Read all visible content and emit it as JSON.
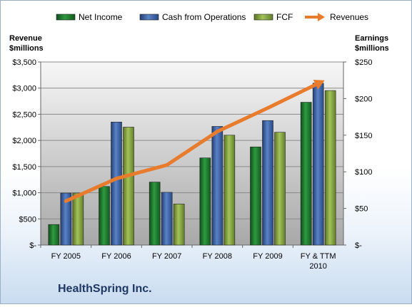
{
  "chart_data": {
    "type": "bar",
    "categories": [
      "FY 2005",
      "FY 2006",
      "FY 2007",
      "FY 2008",
      "FY 2009",
      "FY & TTM 2010"
    ],
    "left_axis": {
      "label_line1": "Revenue",
      "label_line2": "$millions",
      "ylim": [
        0,
        3500
      ],
      "ticks": [
        0,
        500,
        1000,
        1500,
        2000,
        2500,
        3000,
        3500
      ],
      "tick_labels": [
        "$-",
        "$500",
        "$1,000",
        "$1,500",
        "$2,000",
        "$2,500",
        "$3,000",
        "$3,500"
      ]
    },
    "right_axis": {
      "label_line1": "Earnings",
      "label_line2": "$millions",
      "ylim": [
        0,
        250
      ],
      "ticks": [
        0,
        50,
        100,
        150,
        200,
        250
      ],
      "tick_labels": [
        "$-",
        "$50",
        "$100",
        "$150",
        "$200",
        "$250"
      ]
    },
    "series": [
      {
        "name": "Net Income",
        "type": "bar",
        "axis": "right",
        "color": "#1e7a2e",
        "values": [
          28,
          80,
          86,
          119,
          134,
          195
        ]
      },
      {
        "name": "Cash from Operations",
        "type": "bar",
        "axis": "right",
        "color": "#3a62a8",
        "values": [
          71,
          168,
          72,
          162,
          170,
          221
        ]
      },
      {
        "name": "FCF",
        "type": "bar",
        "axis": "right",
        "color": "#86a83c",
        "values": [
          71,
          161,
          56,
          150,
          154,
          211
        ]
      },
      {
        "name": "Revenues",
        "type": "line",
        "axis": "left",
        "color": "#e87c2c",
        "values": [
          840,
          1270,
          1530,
          2170,
          2620,
          3090
        ]
      }
    ],
    "legend_position": "top",
    "grid": true
  },
  "company_name": "HealthSpring Inc."
}
